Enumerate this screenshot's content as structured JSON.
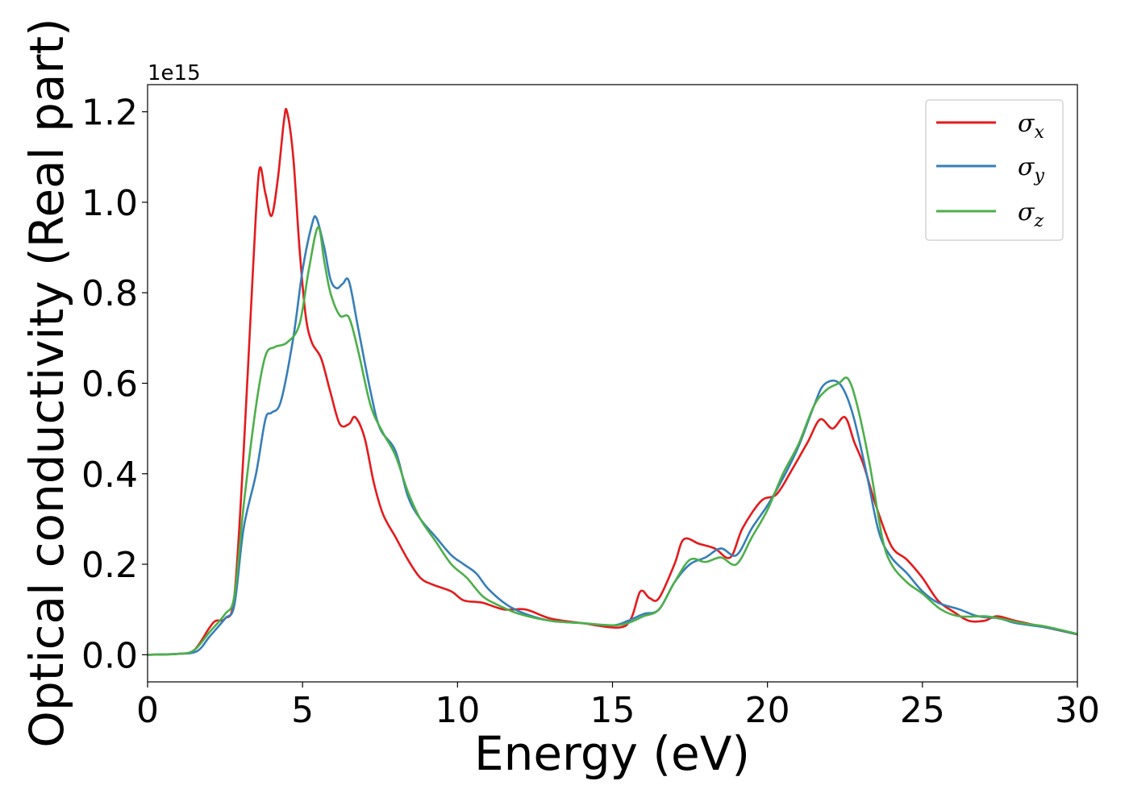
{
  "chart_data": {
    "type": "line",
    "xlabel": "Energy (eV)",
    "ylabel": "Optical conductivity (Real part)",
    "y_offset_label": "1e15",
    "xlim": [
      0,
      30
    ],
    "ylim": [
      -0.06,
      1.26
    ],
    "x_ticks": [
      0,
      5,
      10,
      15,
      20,
      25,
      30
    ],
    "x_tick_labels": [
      "0",
      "5",
      "10",
      "15",
      "20",
      "25",
      "30"
    ],
    "y_ticks": [
      0.0,
      0.2,
      0.4,
      0.6,
      0.8,
      1.0,
      1.2
    ],
    "y_tick_labels": [
      "0.0",
      "0.2",
      "0.4",
      "0.6",
      "0.8",
      "1.0",
      "1.2"
    ],
    "grid": false,
    "legend_position": "top-right",
    "series": [
      {
        "name": "σ_x",
        "legend_main": "σ",
        "legend_sub": "x",
        "color": "#e41a1c",
        "points": [
          [
            0,
            0
          ],
          [
            1,
            0.002
          ],
          [
            1.5,
            0.01
          ],
          [
            2,
            0.06
          ],
          [
            2.2,
            0.075
          ],
          [
            2.5,
            0.08
          ],
          [
            2.8,
            0.13
          ],
          [
            3.1,
            0.45
          ],
          [
            3.4,
            0.85
          ],
          [
            3.6,
            1.07
          ],
          [
            3.8,
            1.02
          ],
          [
            4.0,
            0.97
          ],
          [
            4.2,
            1.05
          ],
          [
            4.4,
            1.18
          ],
          [
            4.5,
            1.2
          ],
          [
            4.7,
            1.1
          ],
          [
            4.9,
            0.9
          ],
          [
            5.1,
            0.75
          ],
          [
            5.3,
            0.69
          ],
          [
            5.6,
            0.655
          ],
          [
            5.9,
            0.58
          ],
          [
            6.2,
            0.51
          ],
          [
            6.5,
            0.51
          ],
          [
            6.7,
            0.525
          ],
          [
            7.0,
            0.48
          ],
          [
            7.3,
            0.38
          ],
          [
            7.6,
            0.31
          ],
          [
            8.0,
            0.26
          ],
          [
            8.4,
            0.21
          ],
          [
            8.8,
            0.17
          ],
          [
            9.2,
            0.155
          ],
          [
            9.8,
            0.14
          ],
          [
            10.2,
            0.12
          ],
          [
            10.8,
            0.115
          ],
          [
            11.5,
            0.1
          ],
          [
            12.2,
            0.1
          ],
          [
            13,
            0.08
          ],
          [
            14,
            0.07
          ],
          [
            15.2,
            0.06
          ],
          [
            15.6,
            0.08
          ],
          [
            15.9,
            0.14
          ],
          [
            16.2,
            0.125
          ],
          [
            16.5,
            0.125
          ],
          [
            17,
            0.2
          ],
          [
            17.3,
            0.255
          ],
          [
            17.8,
            0.245
          ],
          [
            18.3,
            0.235
          ],
          [
            18.8,
            0.215
          ],
          [
            19.2,
            0.28
          ],
          [
            19.8,
            0.34
          ],
          [
            20.3,
            0.355
          ],
          [
            20.8,
            0.41
          ],
          [
            21.3,
            0.47
          ],
          [
            21.7,
            0.52
          ],
          [
            22.1,
            0.5
          ],
          [
            22.5,
            0.525
          ],
          [
            22.8,
            0.47
          ],
          [
            23.1,
            0.42
          ],
          [
            23.5,
            0.33
          ],
          [
            24.0,
            0.24
          ],
          [
            24.5,
            0.21
          ],
          [
            25.0,
            0.17
          ],
          [
            25.5,
            0.12
          ],
          [
            26.0,
            0.095
          ],
          [
            26.5,
            0.075
          ],
          [
            27.0,
            0.075
          ],
          [
            27.4,
            0.085
          ],
          [
            28,
            0.075
          ],
          [
            29,
            0.06
          ],
          [
            30,
            0.045
          ]
        ]
      },
      {
        "name": "σ_y",
        "legend_main": "σ",
        "legend_sub": "y",
        "color": "#377eb8",
        "points": [
          [
            0,
            0
          ],
          [
            1,
            0.002
          ],
          [
            1.6,
            0.008
          ],
          [
            2,
            0.04
          ],
          [
            2.5,
            0.08
          ],
          [
            2.8,
            0.11
          ],
          [
            3.1,
            0.28
          ],
          [
            3.5,
            0.4
          ],
          [
            3.8,
            0.52
          ],
          [
            4.0,
            0.535
          ],
          [
            4.3,
            0.56
          ],
          [
            4.7,
            0.7
          ],
          [
            5.0,
            0.85
          ],
          [
            5.3,
            0.95
          ],
          [
            5.45,
            0.965
          ],
          [
            5.7,
            0.9
          ],
          [
            5.9,
            0.83
          ],
          [
            6.1,
            0.81
          ],
          [
            6.3,
            0.82
          ],
          [
            6.5,
            0.825
          ],
          [
            6.8,
            0.72
          ],
          [
            7.2,
            0.58
          ],
          [
            7.5,
            0.5
          ],
          [
            8.0,
            0.45
          ],
          [
            8.4,
            0.35
          ],
          [
            8.8,
            0.3
          ],
          [
            9.3,
            0.26
          ],
          [
            9.8,
            0.22
          ],
          [
            10.2,
            0.2
          ],
          [
            10.6,
            0.18
          ],
          [
            11.0,
            0.145
          ],
          [
            11.6,
            0.11
          ],
          [
            12.2,
            0.09
          ],
          [
            13,
            0.075
          ],
          [
            14,
            0.07
          ],
          [
            15,
            0.065
          ],
          [
            15.5,
            0.075
          ],
          [
            16,
            0.09
          ],
          [
            16.5,
            0.1
          ],
          [
            17,
            0.16
          ],
          [
            17.5,
            0.2
          ],
          [
            18,
            0.215
          ],
          [
            18.5,
            0.235
          ],
          [
            19,
            0.22
          ],
          [
            19.5,
            0.28
          ],
          [
            20,
            0.33
          ],
          [
            20.5,
            0.39
          ],
          [
            21,
            0.46
          ],
          [
            21.5,
            0.55
          ],
          [
            21.8,
            0.595
          ],
          [
            22.2,
            0.605
          ],
          [
            22.5,
            0.58
          ],
          [
            22.8,
            0.52
          ],
          [
            23.2,
            0.4
          ],
          [
            23.6,
            0.27
          ],
          [
            24.0,
            0.215
          ],
          [
            24.5,
            0.18
          ],
          [
            25,
            0.14
          ],
          [
            25.5,
            0.115
          ],
          [
            26.2,
            0.1
          ],
          [
            26.8,
            0.085
          ],
          [
            27.5,
            0.08
          ],
          [
            28,
            0.07
          ],
          [
            29,
            0.06
          ],
          [
            30,
            0.045
          ]
        ]
      },
      {
        "name": "σ_z",
        "legend_main": "σ",
        "legend_sub": "z",
        "color": "#4daf4a",
        "points": [
          [
            0,
            0
          ],
          [
            1,
            0.002
          ],
          [
            1.5,
            0.01
          ],
          [
            2,
            0.05
          ],
          [
            2.5,
            0.09
          ],
          [
            2.8,
            0.13
          ],
          [
            3.1,
            0.33
          ],
          [
            3.5,
            0.55
          ],
          [
            3.8,
            0.66
          ],
          [
            4.1,
            0.68
          ],
          [
            4.5,
            0.69
          ],
          [
            4.9,
            0.73
          ],
          [
            5.2,
            0.85
          ],
          [
            5.5,
            0.945
          ],
          [
            5.7,
            0.87
          ],
          [
            5.9,
            0.8
          ],
          [
            6.2,
            0.75
          ],
          [
            6.5,
            0.745
          ],
          [
            6.8,
            0.67
          ],
          [
            7.2,
            0.55
          ],
          [
            7.6,
            0.49
          ],
          [
            8.0,
            0.44
          ],
          [
            8.4,
            0.36
          ],
          [
            8.8,
            0.3
          ],
          [
            9.3,
            0.25
          ],
          [
            9.8,
            0.2
          ],
          [
            10.3,
            0.17
          ],
          [
            10.8,
            0.13
          ],
          [
            11.3,
            0.11
          ],
          [
            12,
            0.09
          ],
          [
            13,
            0.075
          ],
          [
            14,
            0.07
          ],
          [
            15,
            0.065
          ],
          [
            15.5,
            0.07
          ],
          [
            16,
            0.085
          ],
          [
            16.5,
            0.1
          ],
          [
            17,
            0.16
          ],
          [
            17.5,
            0.21
          ],
          [
            18,
            0.205
          ],
          [
            18.5,
            0.215
          ],
          [
            19,
            0.2
          ],
          [
            19.5,
            0.26
          ],
          [
            20,
            0.32
          ],
          [
            20.5,
            0.4
          ],
          [
            21,
            0.465
          ],
          [
            21.5,
            0.55
          ],
          [
            21.9,
            0.585
          ],
          [
            22.3,
            0.6
          ],
          [
            22.6,
            0.61
          ],
          [
            22.9,
            0.55
          ],
          [
            23.3,
            0.42
          ],
          [
            23.7,
            0.26
          ],
          [
            24.0,
            0.2
          ],
          [
            24.5,
            0.16
          ],
          [
            25,
            0.135
          ],
          [
            25.6,
            0.1
          ],
          [
            26.2,
            0.085
          ],
          [
            27,
            0.085
          ],
          [
            27.5,
            0.08
          ],
          [
            28.2,
            0.07
          ],
          [
            29,
            0.062
          ],
          [
            30,
            0.046
          ]
        ]
      }
    ]
  }
}
